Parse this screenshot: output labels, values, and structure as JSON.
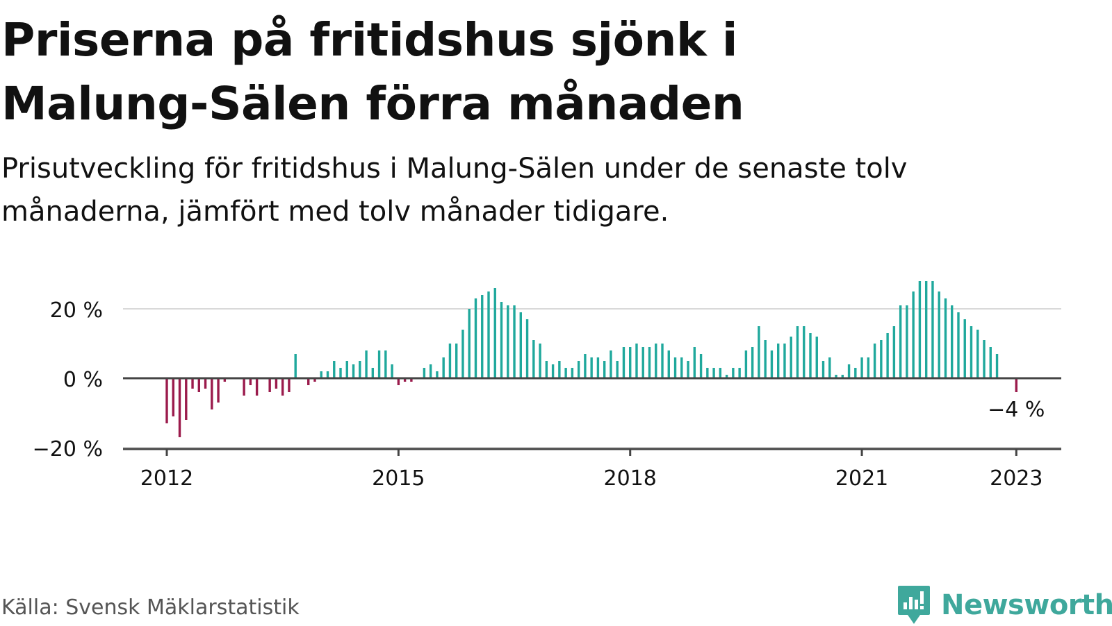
{
  "title": "Priserna på fritidshus sjönk i Malung-Sälen förra månaden",
  "subtitle": "Prisutveckling för fritidshus i Malung-Sälen under de senaste tolv månaderna, jämfört med tolv månader tidigare.",
  "source": "Källa: Svensk Mäklarstatistik",
  "brand": {
    "name": "Newsworthy",
    "icon": "newsworthy-logo-icon"
  },
  "chart_data": {
    "type": "bar",
    "title": "",
    "xlabel": "",
    "ylabel": "",
    "ylim": [
      -20,
      30
    ],
    "y_ticks": [
      {
        "value": 20,
        "label": "20 %"
      },
      {
        "value": 0,
        "label": "0 %"
      },
      {
        "value": -20,
        "label": "−20 %"
      }
    ],
    "x_ticks": [
      {
        "year": 2012,
        "label": "2012"
      },
      {
        "year": 2015,
        "label": "2015"
      },
      {
        "year": 2018,
        "label": "2018"
      },
      {
        "year": 2021,
        "label": "2021"
      },
      {
        "year": 2023,
        "label": "2023"
      }
    ],
    "start": "2012-01",
    "colors": {
      "positive": "#1fa89c",
      "negative": "#9b1b4c"
    },
    "grid": true,
    "annotation": {
      "text": "−4 %",
      "month": "2023-01"
    },
    "values": [
      -13,
      -11,
      -17,
      -12,
      -3,
      -4,
      -3,
      -9,
      -7,
      -1,
      0,
      0,
      -5,
      -2,
      -5,
      0,
      -4,
      -3,
      -5,
      -4,
      7,
      0,
      -2,
      -1,
      2,
      2,
      5,
      3,
      5,
      4,
      5,
      8,
      3,
      8,
      8,
      4,
      -2,
      -1,
      -1,
      0,
      3,
      4,
      2,
      6,
      10,
      10,
      14,
      20,
      23,
      24,
      25,
      26,
      22,
      21,
      21,
      19,
      17,
      11,
      10,
      5,
      4,
      5,
      3,
      3,
      5,
      7,
      6,
      6,
      5,
      8,
      5,
      9,
      9,
      10,
      9,
      9,
      10,
      10,
      8,
      6,
      6,
      5,
      9,
      7,
      3,
      3,
      3,
      1,
      3,
      3,
      8,
      9,
      15,
      11,
      8,
      10,
      10,
      12,
      15,
      15,
      13,
      12,
      5,
      6,
      1,
      1,
      4,
      3,
      6,
      6,
      10,
      11,
      13,
      15,
      21,
      21,
      25,
      28,
      28,
      28,
      25,
      23,
      21,
      19,
      17,
      15,
      14,
      11,
      9,
      7,
      0,
      0,
      -4
    ]
  }
}
